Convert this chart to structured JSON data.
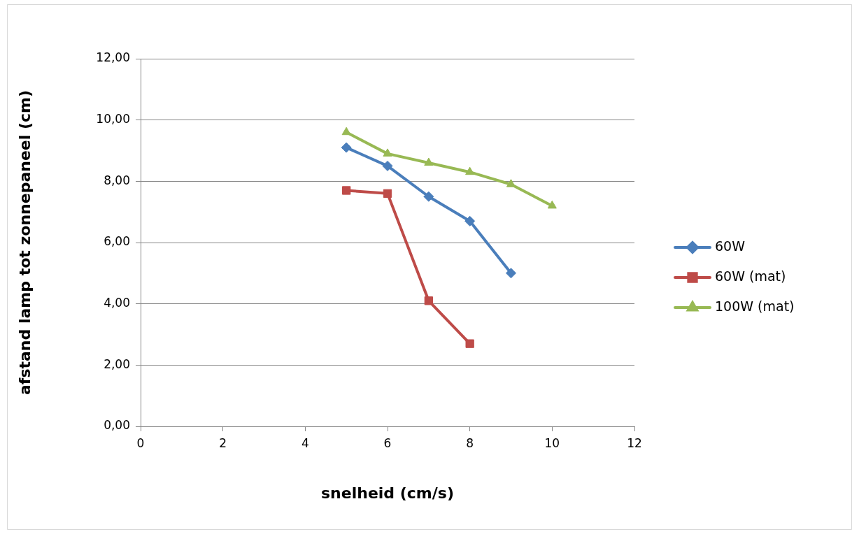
{
  "chart_data": {
    "type": "line",
    "xlabel": "snelheid (cm/s)",
    "ylabel": "afstand lamp tot zonnepaneel (cm)",
    "xlim": [
      0,
      12
    ],
    "xticks": [
      0,
      2,
      4,
      6,
      8,
      10,
      12
    ],
    "ylim": [
      0,
      12
    ],
    "yticks": [
      {
        "value": 0,
        "label": "0,00"
      },
      {
        "value": 2,
        "label": "2,00"
      },
      {
        "value": 4,
        "label": "4,00"
      },
      {
        "value": 6,
        "label": "6,00"
      },
      {
        "value": 8,
        "label": "8,00"
      },
      {
        "value": 10,
        "label": "10,00"
      },
      {
        "value": 12,
        "label": "12,00"
      }
    ],
    "grid": "y",
    "legend": "right",
    "line_style": "solid",
    "series": [
      {
        "name": "60W",
        "color": "#4a7ebb",
        "marker": "diamond",
        "x": [
          5,
          6,
          7,
          8,
          9
        ],
        "values": [
          9.1,
          8.5,
          7.5,
          6.7,
          5.0
        ]
      },
      {
        "name": "60W (mat)",
        "color": "#be4b48",
        "marker": "square",
        "x": [
          5,
          6,
          7,
          8
        ],
        "values": [
          7.7,
          7.6,
          4.1,
          2.7
        ]
      },
      {
        "name": "100W (mat)",
        "color": "#98b954",
        "marker": "triangle",
        "x": [
          5,
          6,
          7,
          8,
          9,
          10
        ],
        "values": [
          9.6,
          8.9,
          8.6,
          8.3,
          7.9,
          7.2
        ]
      }
    ]
  }
}
